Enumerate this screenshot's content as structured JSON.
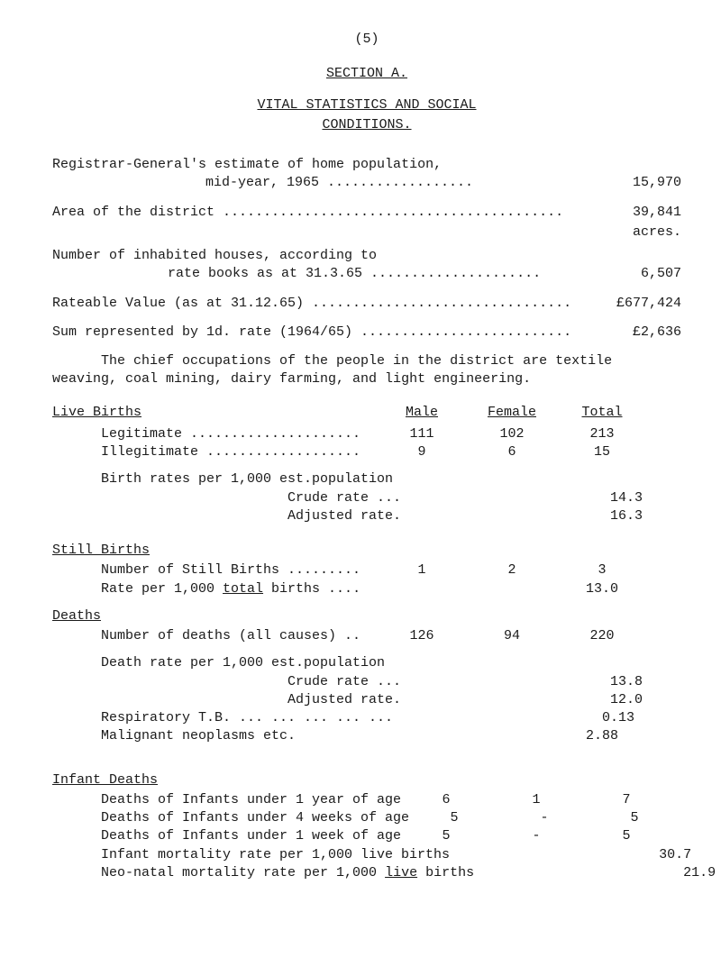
{
  "pagenum": "(5)",
  "section_hdr": "SECTION   A.",
  "vital_hdr": "VITAL  STATISTICS  AND  SOCIAL",
  "cond_hdr": "CONDITIONS.",
  "reg1": "Registrar-General's estimate of home population,",
  "reg2_lead": "mid-year, 1965 ..................",
  "reg2_val": "15,970",
  "area_lead": "Area of the district ..........................................",
  "area_val": "39,841",
  "acres": "acres.",
  "numhouses1": "Number of inhabited houses, according to",
  "numhouses2_lead": "rate books as at 31.3.65 .....................",
  "numhouses2_val": "6,507",
  "rateable_lead": "Rateable Value (as at 31.12.65) ................................",
  "rateable_val": "£677,424",
  "sumrep_lead": "Sum represented by 1d. rate (1964/65) ..........................",
  "sumrep_val": "£2,636",
  "chief_l1": "The chief occupations of the people in the district are textile",
  "chief_l2": "weaving, coal mining, dairy farming, and light engineering.",
  "live_births_label": "Live Births",
  "col_male": "Male",
  "col_female": "Female",
  "col_total": "Total",
  "legit_label": "Legitimate .....................",
  "legit_m": "111",
  "legit_f": "102",
  "legit_t": "213",
  "illeg_label": "Illegitimate ...................",
  "illeg_m": "9",
  "illeg_f": "6",
  "illeg_t": "15",
  "birthrates_l1": "Birth rates per 1,000 est.population",
  "crude_lbl": "                       Crude rate ...",
  "crude_val": "14.3",
  "adj_lbl": "                       Adjusted rate.",
  "adj_val": "16.3",
  "still_births_label": "Still Births",
  "nstill_lbl": "Number of Still Births .........",
  "nstill_m": "1",
  "nstill_f": "2",
  "nstill_t": "3",
  "rate_total_lbl": "Rate per 1,000 ",
  "rate_total_lbl_u": "total",
  "rate_total_lbl_suf": " births ....",
  "rate_total_val": "13.0",
  "deaths_label": "Deaths",
  "ndeaths_lbl": "Number of deaths (all causes) ..",
  "ndeaths_m": "126",
  "ndeaths_f": "94",
  "ndeaths_t": "220",
  "drate_l1": "Death rate per 1,000 est.population",
  "dcrude_lbl": "                       Crude rate ...",
  "dcrude_val": "13.8",
  "dadj_lbl": "                       Adjusted rate.",
  "dadj_val": "12.0",
  "resp_lbl": "Respiratory T.B. ... ... ... ... ...",
  "resp_val": "0.13",
  "malig_lbl": "Malignant neoplasms etc.",
  "malig_val": "2.88",
  "infant_label": "Infant Deaths",
  "inf1_lbl": "Deaths of Infants under 1 year of age",
  "inf1_m": "6",
  "inf1_f": "1",
  "inf1_t": "7",
  "inf2_lbl": "Deaths of Infants under 4 weeks of age",
  "inf2_m": "5",
  "inf2_f": "-",
  "inf2_t": "5",
  "inf3_lbl": "Deaths of Infants under 1 week of age",
  "inf3_m": "5",
  "inf3_f": "-",
  "inf3_t": "5",
  "inf4_lbl": "Infant mortality rate per 1,000 live births",
  "inf4_t": "30.7",
  "inf5_lbl_pre": "Neo-natal mortality rate per 1,000 ",
  "inf5_lbl_u": "live",
  "inf5_lbl_suf": " births",
  "inf5_t": "21.9"
}
